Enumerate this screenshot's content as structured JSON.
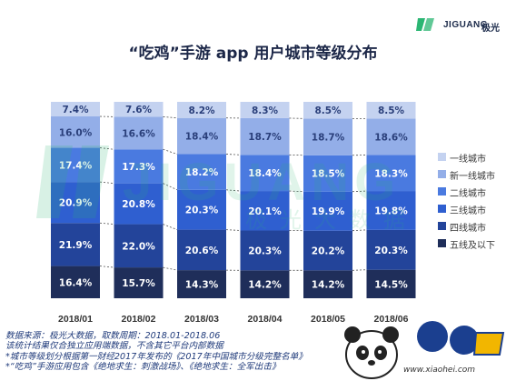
{
  "logo": {
    "brand": "JIGUANG",
    "brand_cn": "极光"
  },
  "title": "“吃鸡”手游 app 用户城市等级分布",
  "watermark": {
    "text_en": "JIGUANG",
    "text_cn": "极光大数据"
  },
  "colors": [
    "#1f2e5a",
    "#23449a",
    "#2f5fd0",
    "#4a7ae0",
    "#93aee8",
    "#c4d2f0"
  ],
  "chart_data": {
    "type": "bar",
    "stacked": true,
    "percent": true,
    "categories": [
      "2018/01",
      "2018/02",
      "2018/03",
      "2018/04",
      "2018/05",
      "2018/06"
    ],
    "series": [
      {
        "name": "五线及以下",
        "values": [
          16.4,
          15.7,
          14.3,
          14.2,
          14.2,
          14.5
        ]
      },
      {
        "name": "四线城市",
        "values": [
          21.9,
          22.0,
          20.6,
          20.3,
          20.2,
          20.3
        ]
      },
      {
        "name": "三线城市",
        "values": [
          20.9,
          20.8,
          20.3,
          20.1,
          19.9,
          19.8
        ]
      },
      {
        "name": "二线城市",
        "values": [
          17.4,
          17.3,
          18.2,
          18.4,
          18.5,
          18.3
        ]
      },
      {
        "name": "新一线城市",
        "values": [
          16.0,
          16.6,
          18.4,
          18.7,
          18.7,
          18.6
        ]
      },
      {
        "name": "一线城市",
        "values": [
          7.4,
          7.6,
          8.2,
          8.3,
          8.5,
          8.5
        ]
      }
    ],
    "ylim": [
      0,
      100
    ]
  },
  "notes": [
    "数据来源：极光大数据，取数周期：2018.01-2018.06",
    "该统计结果仅合独立应用端数据，不含其它平台内部数据",
    "*城市等级划分根据第一财经2017年发布的《2017年中国城市分级完整名单》",
    "*“吃鸡”手游应用包含《绝地求生：刺激战场》、《绝地求生：全军出击》"
  ],
  "badge": {
    "text": "www.xiaohei.com"
  }
}
